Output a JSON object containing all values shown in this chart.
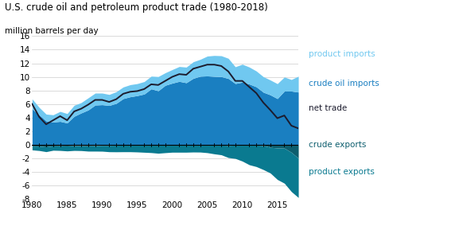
{
  "title": "U.S. crude oil and petroleum product trade (1980-2018)",
  "subtitle": "million barrels per day",
  "years": [
    1980,
    1981,
    1982,
    1983,
    1984,
    1985,
    1986,
    1987,
    1988,
    1989,
    1990,
    1991,
    1992,
    1993,
    1994,
    1995,
    1996,
    1997,
    1998,
    1999,
    2000,
    2001,
    2002,
    2003,
    2004,
    2005,
    2006,
    2007,
    2008,
    2009,
    2010,
    2011,
    2012,
    2013,
    2014,
    2015,
    2016,
    2017,
    2018
  ],
  "crude_oil_imports": [
    5.26,
    4.4,
    3.49,
    3.33,
    3.43,
    3.2,
    4.18,
    4.67,
    5.11,
    5.84,
    5.89,
    5.78,
    6.08,
    6.79,
    7.06,
    7.23,
    7.46,
    8.23,
    7.94,
    8.75,
    9.07,
    9.33,
    9.13,
    9.78,
    10.09,
    10.13,
    10.07,
    10.03,
    9.76,
    9.01,
    9.21,
    8.94,
    8.53,
    7.73,
    7.34,
    6.79,
    7.9,
    7.9,
    7.75
  ],
  "product_imports": [
    1.48,
    1.1,
    1.01,
    1.07,
    1.47,
    1.38,
    1.62,
    1.53,
    1.79,
    1.76,
    1.71,
    1.62,
    1.72,
    1.71,
    1.78,
    1.77,
    1.84,
    1.87,
    2.1,
    1.85,
    2.0,
    2.19,
    2.3,
    2.44,
    2.49,
    2.93,
    3.08,
    3.08,
    2.97,
    2.47,
    2.65,
    2.5,
    2.33,
    2.29,
    2.19,
    2.2,
    2.07,
    1.7,
    2.34
  ],
  "crude_exports": [
    -0.23,
    -0.22,
    -0.33,
    -0.19,
    -0.18,
    -0.2,
    -0.15,
    -0.15,
    -0.18,
    -0.15,
    -0.11,
    -0.11,
    -0.09,
    -0.08,
    -0.08,
    -0.08,
    -0.08,
    -0.08,
    -0.08,
    -0.08,
    -0.08,
    -0.08,
    -0.08,
    -0.05,
    -0.05,
    -0.09,
    -0.06,
    -0.07,
    -0.11,
    -0.08,
    -0.09,
    -0.04,
    -0.07,
    -0.13,
    -0.4,
    -0.49,
    -0.52,
    -1.13,
    -2.0
  ],
  "product_exports": [
    -0.55,
    -0.65,
    -0.71,
    -0.64,
    -0.68,
    -0.73,
    -0.71,
    -0.73,
    -0.78,
    -0.81,
    -0.86,
    -0.94,
    -0.97,
    -0.97,
    -0.97,
    -1.0,
    -1.05,
    -1.1,
    -1.19,
    -1.11,
    -1.04,
    -1.04,
    -1.04,
    -1.04,
    -1.05,
    -1.1,
    -1.3,
    -1.43,
    -1.8,
    -1.96,
    -2.34,
    -2.93,
    -3.17,
    -3.55,
    -3.79,
    -4.65,
    -5.17,
    -5.79,
    -5.8
  ],
  "net_trade": [
    6.0,
    4.1,
    3.0,
    3.6,
    4.2,
    3.6,
    4.9,
    5.3,
    5.9,
    6.6,
    6.6,
    6.3,
    6.7,
    7.5,
    7.8,
    7.9,
    8.2,
    8.9,
    8.8,
    9.4,
    10.0,
    10.4,
    10.3,
    11.2,
    11.5,
    11.8,
    11.8,
    11.6,
    10.8,
    9.4,
    9.4,
    8.5,
    7.6,
    6.2,
    5.1,
    3.9,
    4.3,
    2.8,
    2.4
  ],
  "color_crude_imports": "#1a7fc1",
  "color_product_imports": "#70c8f0",
  "color_crude_exports": "#0d5e6e",
  "color_product_exports": "#0a7a90",
  "color_net_trade": "#1c1c2e",
  "color_zero_line": "#000000",
  "color_grid": "#cccccc",
  "ylim_min": -8,
  "ylim_max": 16,
  "yticks": [
    -8,
    -6,
    -4,
    -2,
    0,
    2,
    4,
    6,
    8,
    10,
    12,
    14,
    16
  ],
  "xticks": [
    1980,
    1985,
    1990,
    1995,
    2000,
    2005,
    2010,
    2015
  ],
  "legend_items": [
    {
      "label": "product imports",
      "color": "#70c8f0"
    },
    {
      "label": "crude oil imports",
      "color": "#1a7fc1"
    },
    {
      "label": "net trade",
      "color": "#1c1c2e"
    },
    {
      "label": "crude exports",
      "color": "#0d5e6e"
    },
    {
      "label": "product exports",
      "color": "#0a7a90"
    }
  ]
}
